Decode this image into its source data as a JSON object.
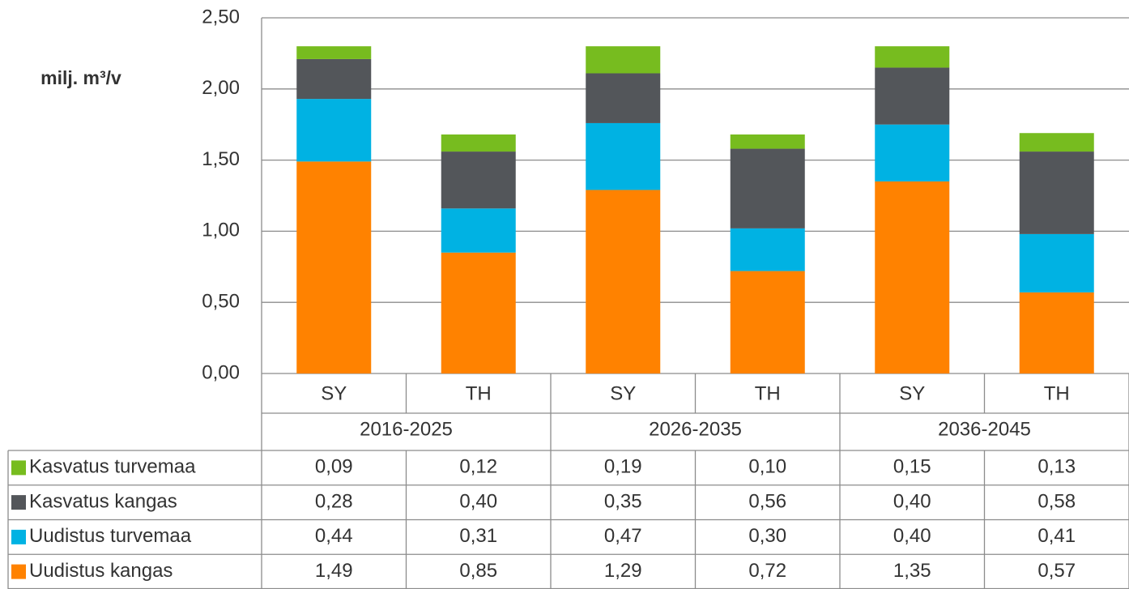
{
  "chart_data": {
    "type": "bar",
    "stacked": true,
    "y_label": "milj. m³/v",
    "categories": [
      "SY",
      "TH",
      "SY",
      "TH",
      "SY",
      "TH"
    ],
    "groups": [
      "2016-2025",
      "2026-2035",
      "2036-2045"
    ],
    "series": [
      {
        "name": "Kasvatus turvemaa",
        "color": "#77bc1f",
        "values": [
          0.09,
          0.12,
          0.19,
          0.1,
          0.15,
          0.13
        ],
        "value_labels": [
          "0,09",
          "0,12",
          "0,19",
          "0,10",
          "0,15",
          "0,13"
        ]
      },
      {
        "name": "Kasvatus kangas",
        "color": "#53565a",
        "values": [
          0.28,
          0.4,
          0.35,
          0.56,
          0.4,
          0.58
        ],
        "value_labels": [
          "0,28",
          "0,40",
          "0,35",
          "0,56",
          "0,40",
          "0,58"
        ]
      },
      {
        "name": "Uudistus turvemaa",
        "color": "#00b2e3",
        "values": [
          0.44,
          0.31,
          0.47,
          0.3,
          0.4,
          0.41
        ],
        "value_labels": [
          "0,44",
          "0,31",
          "0,47",
          "0,30",
          "0,40",
          "0,41"
        ]
      },
      {
        "name": "Uudistus kangas",
        "color": "#ff8200",
        "values": [
          1.49,
          0.85,
          1.29,
          0.72,
          1.35,
          0.57
        ],
        "value_labels": [
          "1,49",
          "0,85",
          "1,29",
          "0,72",
          "1,35",
          "0,57"
        ]
      }
    ],
    "ylim": [
      0,
      2.5
    ],
    "yticks": [
      {
        "value": 0,
        "label": "0,00"
      },
      {
        "value": 0.5,
        "label": "0,50"
      },
      {
        "value": 1,
        "label": "1,00"
      },
      {
        "value": 1.5,
        "label": "1,50"
      },
      {
        "value": 2,
        "label": "2,00"
      },
      {
        "value": 2.5,
        "label": "2,50"
      }
    ],
    "grid": true
  }
}
